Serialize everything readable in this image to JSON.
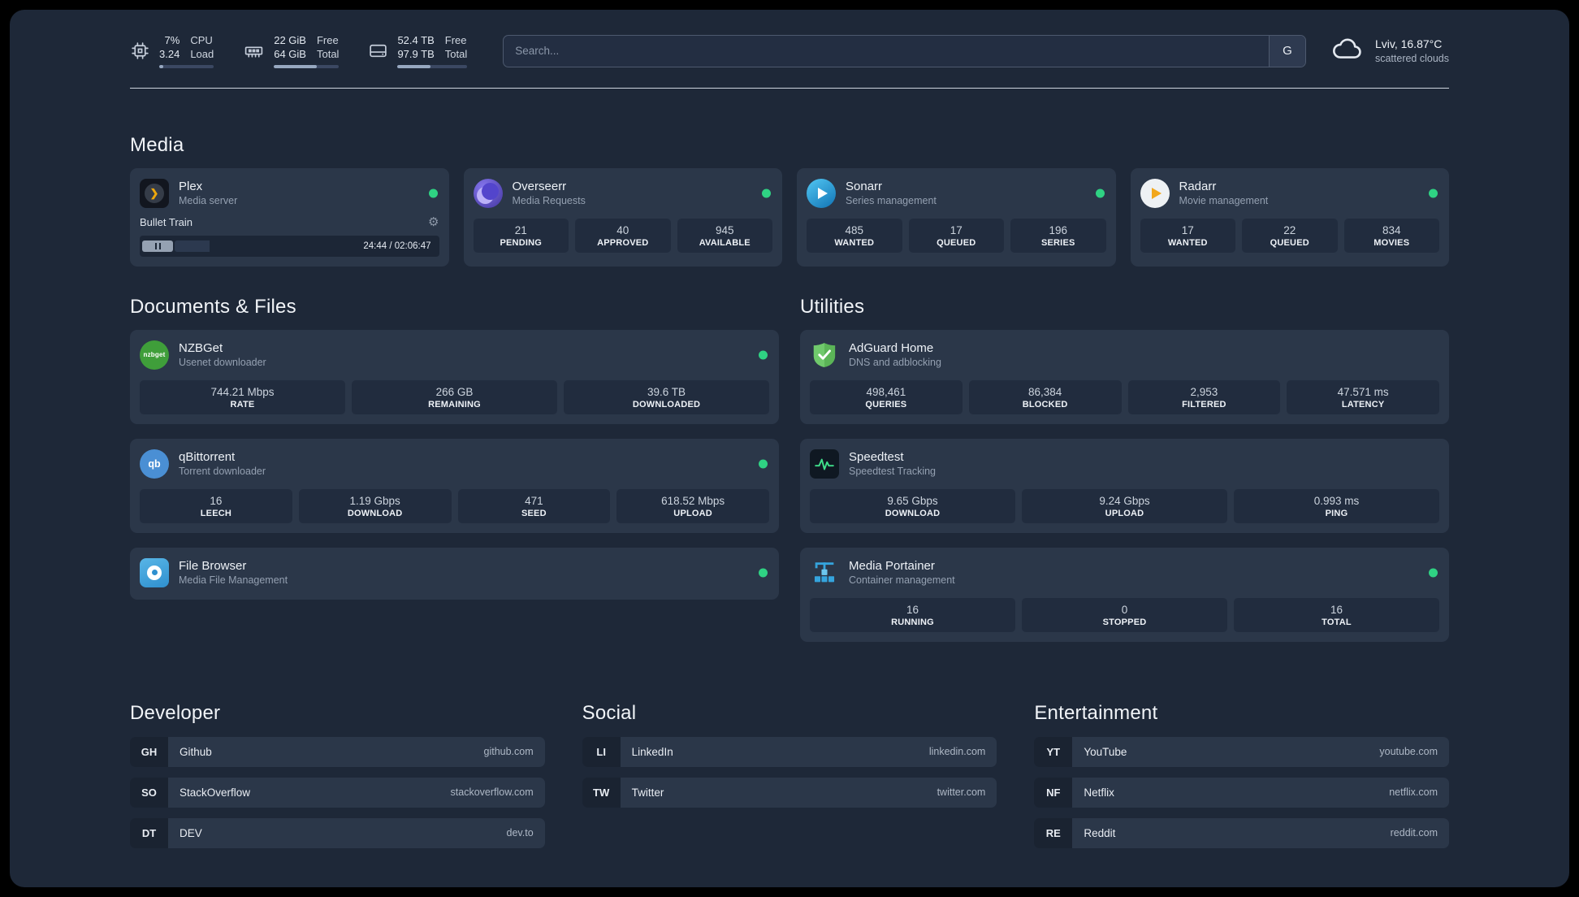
{
  "topbar": {
    "resources": [
      {
        "icon": "cpu-icon",
        "col1_top": "7%",
        "col1_bottom": "3.24",
        "col2_top": "CPU",
        "col2_bottom": "Load",
        "progress": 7
      },
      {
        "icon": "memory-icon",
        "col1_top": "22 GiB",
        "col1_bottom": "64 GiB",
        "col2_top": "Free",
        "col2_bottom": "Total",
        "progress": 66
      },
      {
        "icon": "disk-icon",
        "col1_top": "52.4 TB",
        "col1_bottom": "97.9 TB",
        "col2_top": "Free",
        "col2_bottom": "Total",
        "progress": 47
      }
    ],
    "search": {
      "placeholder": "Search...",
      "provider": "G"
    },
    "weather": {
      "icon": "cloud-icon",
      "location": "Lviv, 16.87°C",
      "condition": "scattered clouds"
    }
  },
  "icon_text": {
    "plex": "❯",
    "nzbget": "nzbget",
    "qbittorrent": "qb",
    "gear": "⚙"
  },
  "colors": {
    "status_ok": "#2fd283",
    "accent_green": "#3fe08b",
    "plex_gold": "#eda70c"
  },
  "media": {
    "title": "Media",
    "plex": {
      "name": "Plex",
      "subtitle": "Media server",
      "now_playing": "Bullet Train",
      "time": "24:44 / 02:06:47",
      "progress": 19.5
    },
    "overseerr": {
      "name": "Overseerr",
      "subtitle": "Media Requests",
      "stats": [
        {
          "value": "21",
          "label": "PENDING"
        },
        {
          "value": "40",
          "label": "APPROVED"
        },
        {
          "value": "945",
          "label": "AVAILABLE"
        }
      ]
    },
    "sonarr": {
      "name": "Sonarr",
      "subtitle": "Series management",
      "stats": [
        {
          "value": "485",
          "label": "WANTED"
        },
        {
          "value": "17",
          "label": "QUEUED"
        },
        {
          "value": "196",
          "label": "SERIES"
        }
      ]
    },
    "radarr": {
      "name": "Radarr",
      "subtitle": "Movie management",
      "stats": [
        {
          "value": "17",
          "label": "WANTED"
        },
        {
          "value": "22",
          "label": "QUEUED"
        },
        {
          "value": "834",
          "label": "MOVIES"
        }
      ]
    }
  },
  "documents": {
    "title": "Documents & Files",
    "nzbget": {
      "name": "NZBGet",
      "subtitle": "Usenet downloader",
      "stats": [
        {
          "value": "744.21 Mbps",
          "label": "RATE"
        },
        {
          "value": "266 GB",
          "label": "REMAINING"
        },
        {
          "value": "39.6 TB",
          "label": "DOWNLOADED"
        }
      ]
    },
    "qbittorrent": {
      "name": "qBittorrent",
      "subtitle": "Torrent downloader",
      "stats": [
        {
          "value": "16",
          "label": "LEECH"
        },
        {
          "value": "1.19 Gbps",
          "label": "DOWNLOAD"
        },
        {
          "value": "471",
          "label": "SEED"
        },
        {
          "value": "618.52 Mbps",
          "label": "UPLOAD"
        }
      ]
    },
    "filebrowser": {
      "name": "File Browser",
      "subtitle": "Media File Management"
    }
  },
  "utilities": {
    "title": "Utilities",
    "adguard": {
      "name": "AdGuard Home",
      "subtitle": "DNS and adblocking",
      "stats": [
        {
          "value": "498,461",
          "label": "QUERIES"
        },
        {
          "value": "86,384",
          "label": "BLOCKED"
        },
        {
          "value": "2,953",
          "label": "FILTERED"
        },
        {
          "value": "47.571 ms",
          "label": "LATENCY"
        }
      ]
    },
    "speedtest": {
      "name": "Speedtest",
      "subtitle": "Speedtest Tracking",
      "stats": [
        {
          "value": "9.65 Gbps",
          "label": "DOWNLOAD"
        },
        {
          "value": "9.24 Gbps",
          "label": "UPLOAD"
        },
        {
          "value": "0.993 ms",
          "label": "PING"
        }
      ]
    },
    "portainer": {
      "name": "Media Portainer",
      "subtitle": "Container management",
      "stats": [
        {
          "value": "16",
          "label": "RUNNING"
        },
        {
          "value": "0",
          "label": "STOPPED"
        },
        {
          "value": "16",
          "label": "TOTAL"
        }
      ]
    }
  },
  "bookmarks": {
    "developer": {
      "title": "Developer",
      "items": [
        {
          "abbr": "GH",
          "name": "Github",
          "url": "github.com"
        },
        {
          "abbr": "SO",
          "name": "StackOverflow",
          "url": "stackoverflow.com"
        },
        {
          "abbr": "DT",
          "name": "DEV",
          "url": "dev.to"
        }
      ]
    },
    "social": {
      "title": "Social",
      "items": [
        {
          "abbr": "LI",
          "name": "LinkedIn",
          "url": "linkedin.com"
        },
        {
          "abbr": "TW",
          "name": "Twitter",
          "url": "twitter.com"
        }
      ]
    },
    "entertainment": {
      "title": "Entertainment",
      "items": [
        {
          "abbr": "YT",
          "name": "YouTube",
          "url": "youtube.com"
        },
        {
          "abbr": "NF",
          "name": "Netflix",
          "url": "netflix.com"
        },
        {
          "abbr": "RE",
          "name": "Reddit",
          "url": "reddit.com"
        }
      ]
    }
  }
}
